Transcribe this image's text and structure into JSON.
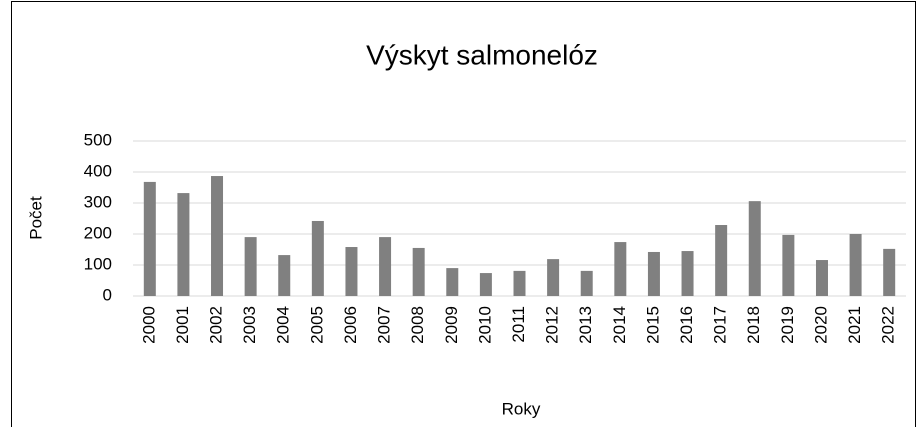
{
  "chart_data": {
    "type": "bar",
    "title": "Výskyt salmonelóz",
    "x_label": "Roky",
    "y_label": "Počet",
    "categories": [
      "2000",
      "2001",
      "2002",
      "2003",
      "2004",
      "2005",
      "2006",
      "2007",
      "2008",
      "2009",
      "2010",
      "2011",
      "2012",
      "2013",
      "2014",
      "2015",
      "2016",
      "2017",
      "2018",
      "2019",
      "2020",
      "2021",
      "2022"
    ],
    "values": [
      368,
      332,
      387,
      190,
      132,
      242,
      158,
      190,
      155,
      90,
      74,
      81,
      119,
      81,
      174,
      142,
      145,
      229,
      306,
      197,
      116,
      200,
      152
    ],
    "color": "#808080",
    "ylim": [
      0,
      500
    ],
    "yticks": [
      0,
      100,
      200,
      300,
      400,
      500
    ],
    "grid": true
  }
}
